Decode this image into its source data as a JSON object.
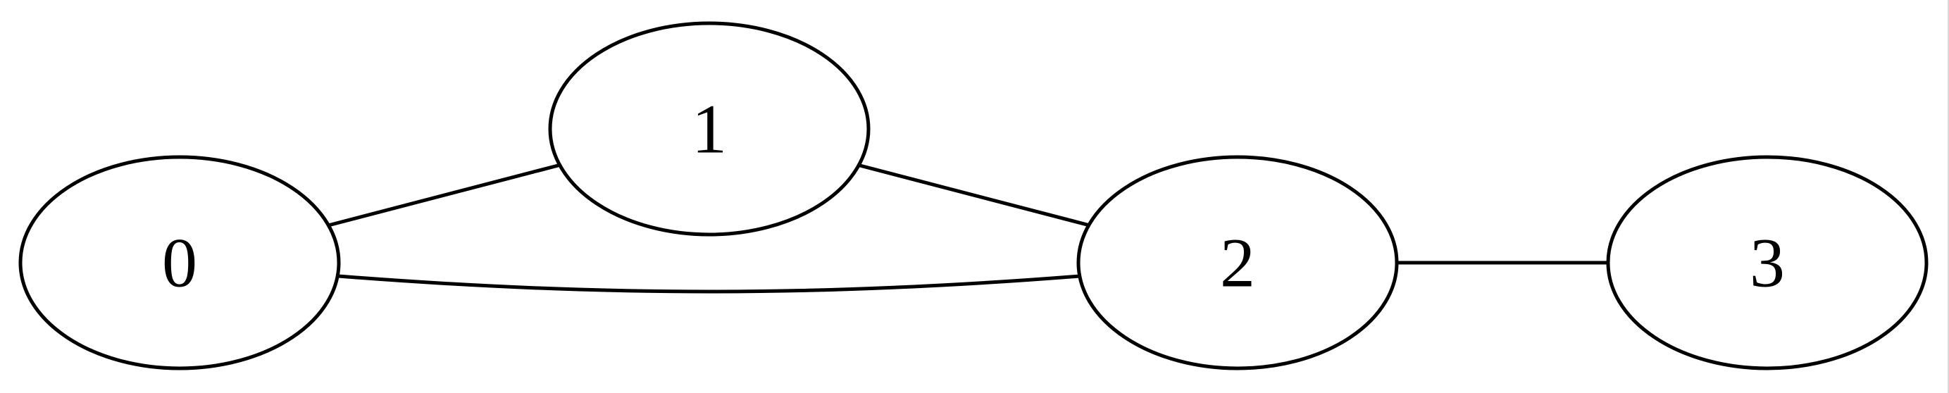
{
  "graph": {
    "nodes": [
      {
        "id": "0",
        "label": "0"
      },
      {
        "id": "1",
        "label": "1"
      },
      {
        "id": "2",
        "label": "2"
      },
      {
        "id": "3",
        "label": "3"
      }
    ],
    "edges": [
      {
        "from": "0",
        "to": "1"
      },
      {
        "from": "1",
        "to": "2"
      },
      {
        "from": "0",
        "to": "2"
      },
      {
        "from": "2",
        "to": "3"
      }
    ]
  },
  "colors": {
    "background": "#ffffff",
    "stroke": "#000000",
    "node_fill": "#ffffff"
  }
}
